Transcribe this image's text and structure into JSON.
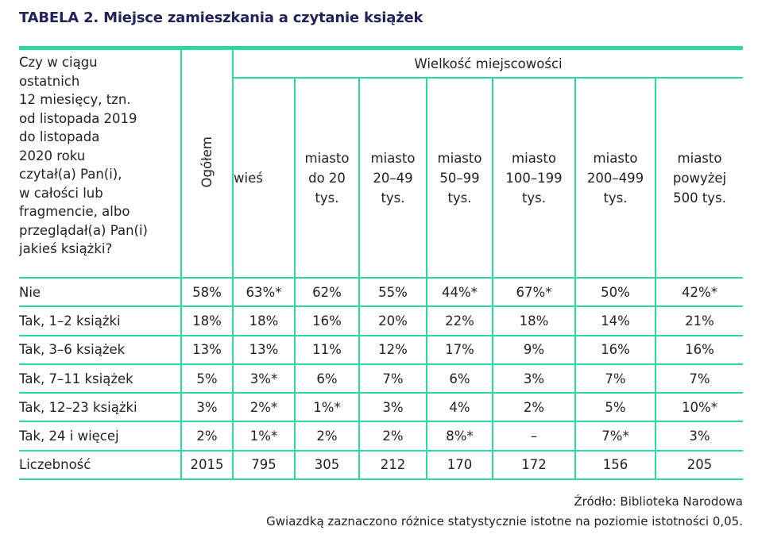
{
  "title": "TABELA 2. Miejsce zamieszkania a czytanie książek",
  "question": "Czy w ciągu ostatnich 12 miesięcy, tzn. od listopada 2019 do listopada 2020 roku czytał(a) Pan(i), w całości lub fragmencie, albo przeglądał(a) Pan(i) jakieś książki?",
  "question_lines": [
    "Czy w ciągu",
    "ostatnich",
    "12 miesięcy, tzn.",
    "od listopada 2019",
    "do listopada",
    "2020 roku",
    "czytał(a) Pan(i),",
    "w całości lub",
    "fragmencie, albo",
    "przeglądał(a) Pan(i)",
    "jakieś książki?"
  ],
  "total_header": "Ogółem",
  "group_header": "Wielkość miejscowości",
  "columns": [
    [
      "wieś"
    ],
    [
      "miasto",
      "do 20",
      "tys."
    ],
    [
      "miasto",
      "20–49",
      "tys."
    ],
    [
      "miasto",
      "50–99",
      "tys."
    ],
    [
      "miasto",
      "100–199",
      "tys."
    ],
    [
      "miasto",
      "200–499",
      "tys."
    ],
    [
      "miasto",
      "powyżej",
      "500 tys."
    ]
  ],
  "rows": [
    {
      "label": "Nie",
      "values": [
        "58%",
        "63%*",
        "62%",
        "55%",
        "44%*",
        "67%*",
        "50%",
        "42%*"
      ]
    },
    {
      "label": "Tak, 1–2 książki",
      "values": [
        "18%",
        "18%",
        "16%",
        "20%",
        "22%",
        "18%",
        "14%",
        "21%"
      ]
    },
    {
      "label": "Tak, 3–6 książek",
      "values": [
        "13%",
        "13%",
        "11%",
        "12%",
        "17%",
        "9%",
        "16%",
        "16%"
      ]
    },
    {
      "label": "Tak, 7–11 książek",
      "values": [
        "5%",
        "3%*",
        "6%",
        "7%",
        "6%",
        "3%",
        "7%",
        "7%"
      ]
    },
    {
      "label": "Tak, 12–23 książki",
      "values": [
        "3%",
        "2%*",
        "1%*",
        "3%",
        "4%",
        "2%",
        "5%",
        "10%*"
      ]
    },
    {
      "label": "Tak, 24 i więcej",
      "values": [
        "2%",
        "1%*",
        "2%",
        "2%",
        "8%*",
        "–",
        "7%*",
        "3%"
      ]
    },
    {
      "label": "Liczebność",
      "values": [
        "2015",
        "795",
        "305",
        "212",
        "170",
        "172",
        "156",
        "205"
      ]
    }
  ],
  "source": "Źródło: Biblioteka Narodowa",
  "note": "Gwiazdką zaznaczono różnice statystycznie istotne na poziomie istotności 0,05.",
  "colors": {
    "title": "#23235a",
    "rule": "#2fd8a0",
    "text": "#222222"
  }
}
